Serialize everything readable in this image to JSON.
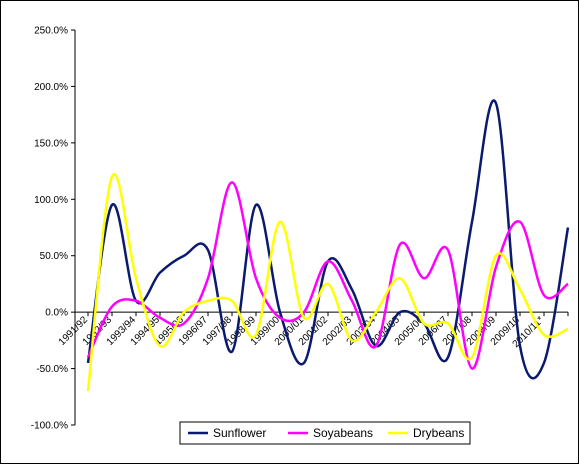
{
  "chart_data": {
    "type": "line",
    "categories": [
      "1991/92",
      "1992/93",
      "1993/94",
      "1994/95",
      "1995/96",
      "1996/97",
      "1997/98",
      "1998/99",
      "1999/00",
      "2000/01",
      "2001/02",
      "2002/03",
      "2003/04",
      "2004/05",
      "2005/06",
      "2006/07",
      "2007/08",
      "2008/09",
      "2009/10",
      "2010/11*",
      null
    ],
    "series": [
      {
        "name": "Sunflower",
        "color": "#0a1a6e",
        "values": [
          -45,
          95,
          10,
          35,
          50,
          55,
          -35,
          95,
          0,
          -45,
          45,
          20,
          -30,
          0,
          -10,
          -40,
          80,
          185,
          -30,
          -45,
          75
        ]
      },
      {
        "name": "Soyabeans",
        "color": "#ff00ff",
        "values": [
          -40,
          5,
          10,
          -5,
          -10,
          30,
          115,
          30,
          -5,
          0,
          45,
          10,
          -30,
          60,
          30,
          55,
          -50,
          40,
          80,
          15,
          25
        ]
      },
      {
        "name": "Drybeans",
        "color": "#ffff00",
        "values": [
          -70,
          120,
          30,
          -30,
          0,
          10,
          10,
          -20,
          80,
          -5,
          25,
          -25,
          0,
          30,
          -10,
          -10,
          -40,
          50,
          20,
          -20,
          -15
        ]
      }
    ],
    "ylim": [
      -100,
      250
    ],
    "yticks": [
      {
        "value": -100,
        "label": "-100.0%"
      },
      {
        "value": -50,
        "label": "-50.0%"
      },
      {
        "value": 0,
        "label": "0.0%"
      },
      {
        "value": 50,
        "label": "50.0%"
      },
      {
        "value": 100,
        "label": "100.0%"
      },
      {
        "value": 150,
        "label": "150.0%"
      },
      {
        "value": 200,
        "label": "200.0%"
      },
      {
        "value": 250,
        "label": "250.0%"
      }
    ],
    "legend": "bottom"
  }
}
